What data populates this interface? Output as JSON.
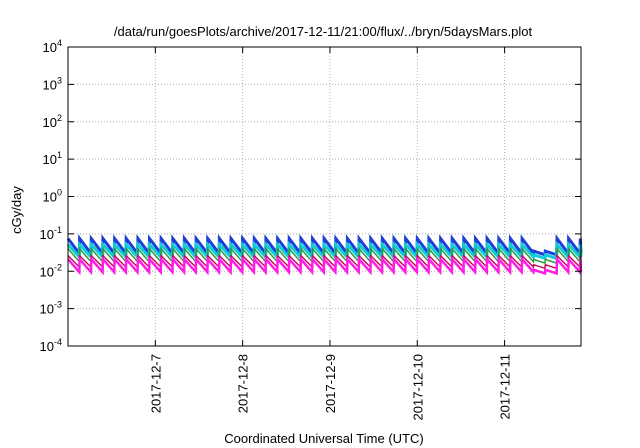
{
  "chart_data": {
    "type": "line",
    "title": "/data/run/goesPlots/archive/2017-12-11/21:00/flux/../bryn/5daysMars.plot",
    "xlabel": "Coordinated Universal Time (UTC)",
    "ylabel": "cGy/day",
    "yscale": "log",
    "ylim": [
      0.0001,
      10000
    ],
    "y_ticks": [
      {
        "value": 0.0001,
        "base": "10",
        "exp": "-4"
      },
      {
        "value": 0.001,
        "base": "10",
        "exp": "-3"
      },
      {
        "value": 0.01,
        "base": "10",
        "exp": "-2"
      },
      {
        "value": 0.1,
        "base": "10",
        "exp": "-1"
      },
      {
        "value": 1,
        "base": "10",
        "exp": "0"
      },
      {
        "value": 10,
        "base": "10",
        "exp": "1"
      },
      {
        "value": 100,
        "base": "10",
        "exp": "2"
      },
      {
        "value": 1000,
        "base": "10",
        "exp": "3"
      },
      {
        "value": 10000,
        "base": "10",
        "exp": "4"
      }
    ],
    "x_range": [
      "2017-12-06T00:00",
      "2017-12-11T21:00"
    ],
    "x_ticks": [
      "2017-12-7",
      "2017-12-8",
      "2017-12-9",
      "2017-12-10",
      "2017-12-11"
    ],
    "grid": true,
    "legend": "none",
    "series_pattern": {
      "type": "sawtooth",
      "period_hours": 3.2,
      "anomaly_start": "2017-12-11T06:00",
      "anomaly_end": "2017-12-11T14:00"
    },
    "series": [
      {
        "color": "#1b3fd8",
        "low": 0.03,
        "high": 0.075,
        "stroke": 3
      },
      {
        "color": "#10cbd8",
        "low": 0.024,
        "high": 0.052,
        "stroke": 3
      },
      {
        "color": "#2e9c3e",
        "low": 0.018,
        "high": 0.04,
        "stroke": 1.5
      },
      {
        "color": "#c4105a",
        "low": 0.013,
        "high": 0.026,
        "stroke": 1.5
      },
      {
        "color": "#ff1de6",
        "low": 0.0095,
        "high": 0.021,
        "stroke": 2.5
      }
    ]
  }
}
